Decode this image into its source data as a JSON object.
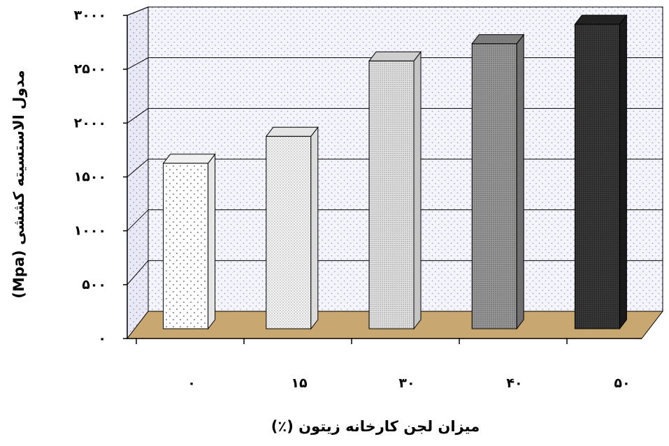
{
  "chart_data": {
    "type": "bar",
    "title": "",
    "xlabel": "میزان لجن کارخانه زیتون (٪)",
    "ylabel": "مدول الاستسیته کششی (Mpa)",
    "categories": [
      "۰",
      "۱۵",
      "۳۰",
      "۴۰",
      "۵۰"
    ],
    "values": [
      1640,
      1890,
      2590,
      2750,
      2930
    ],
    "ylim": [
      0,
      3000
    ],
    "yticks": [
      0,
      500,
      1000,
      1500,
      2000,
      2500,
      3000
    ],
    "ytick_labels": [
      "۰",
      "۵۰۰",
      "۱۰۰۰",
      "۱۵۰۰",
      "۲۰۰۰",
      "۲۵۰۰",
      "۳۰۰۰"
    ],
    "grid": true,
    "legend": "none",
    "style": "3d-bars",
    "colors": {
      "wall": "#f2f2fb",
      "wall_dots": "#8f93cc",
      "floor": "#c8a770",
      "grid": "#000000",
      "bar_fills": [
        "#ffffff",
        "#eeeeee",
        "#dadada",
        "#8c8c8c",
        "#2b2b2b"
      ]
    }
  }
}
